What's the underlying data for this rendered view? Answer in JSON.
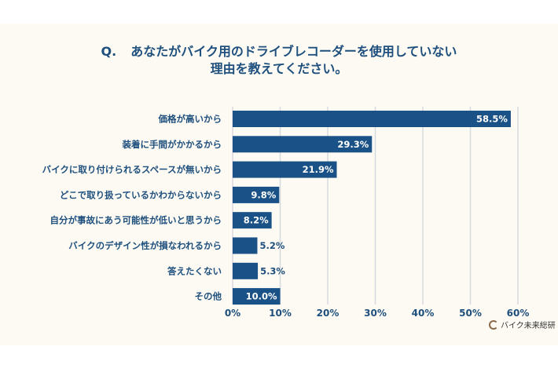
{
  "header": {
    "question_prefix": "Q.",
    "title_line1": "あなたがバイク用のドライブレコーダーを使用していない",
    "title_line2": "理由を教えてください。"
  },
  "brand": {
    "logo_text": "バイク未来総研"
  },
  "colors": {
    "bar": "#1a5287",
    "text": "#1e4f7d",
    "grid": "#d6d9de",
    "background": "#fcfaf3"
  },
  "chart_data": {
    "type": "bar",
    "orientation": "horizontal",
    "title": "Q. あなたがバイク用のドライブレコーダーを使用していない理由を教えてください。",
    "categories": [
      "価格が高いから",
      "装着に手間がかかるから",
      "バイクに取り付けられるスペースが無いから",
      "どこで取り扱っているかわからないから",
      "自分が事故にあう可能性が低いと思うから",
      "バイクのデザイン性が損なわれるから",
      "答えたくない",
      "その他"
    ],
    "values": [
      58.5,
      29.3,
      21.9,
      9.8,
      8.2,
      5.2,
      5.3,
      10.0
    ],
    "value_labels": [
      "58.5%",
      "29.3%",
      "21.9%",
      "9.8%",
      "8.2%",
      "5.2%",
      "5.3%",
      "10.0%"
    ],
    "xlim": [
      0,
      60
    ],
    "xticks": [
      0,
      10,
      20,
      30,
      40,
      50,
      60
    ],
    "xtick_labels": [
      "0%",
      "10%",
      "20%",
      "30%",
      "40%",
      "50%",
      "60%"
    ],
    "xlabel": "",
    "ylabel": "",
    "grid": true
  }
}
